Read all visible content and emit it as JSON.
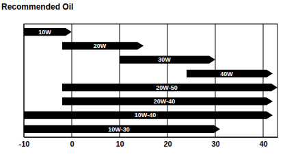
{
  "chart_data": {
    "type": "bar",
    "orientation": "horizontal",
    "title": "Recommended Oil",
    "categories": [
      "10W",
      "20W",
      "30W",
      "40W",
      "20W-50",
      "20W-40",
      "10W-40",
      "10W-30"
    ],
    "values": [
      [
        -10,
        0
      ],
      [
        -2,
        15
      ],
      [
        10,
        30
      ],
      [
        24,
        42
      ],
      [
        -2,
        43
      ],
      [
        -2,
        42
      ],
      [
        -10,
        42
      ],
      [
        -10,
        31
      ]
    ],
    "color": "#000000",
    "xlim": [
      -10,
      43
    ],
    "xticks": [
      -10,
      0,
      10,
      20,
      30,
      40
    ],
    "grid": true,
    "tick_labels": "x"
  }
}
